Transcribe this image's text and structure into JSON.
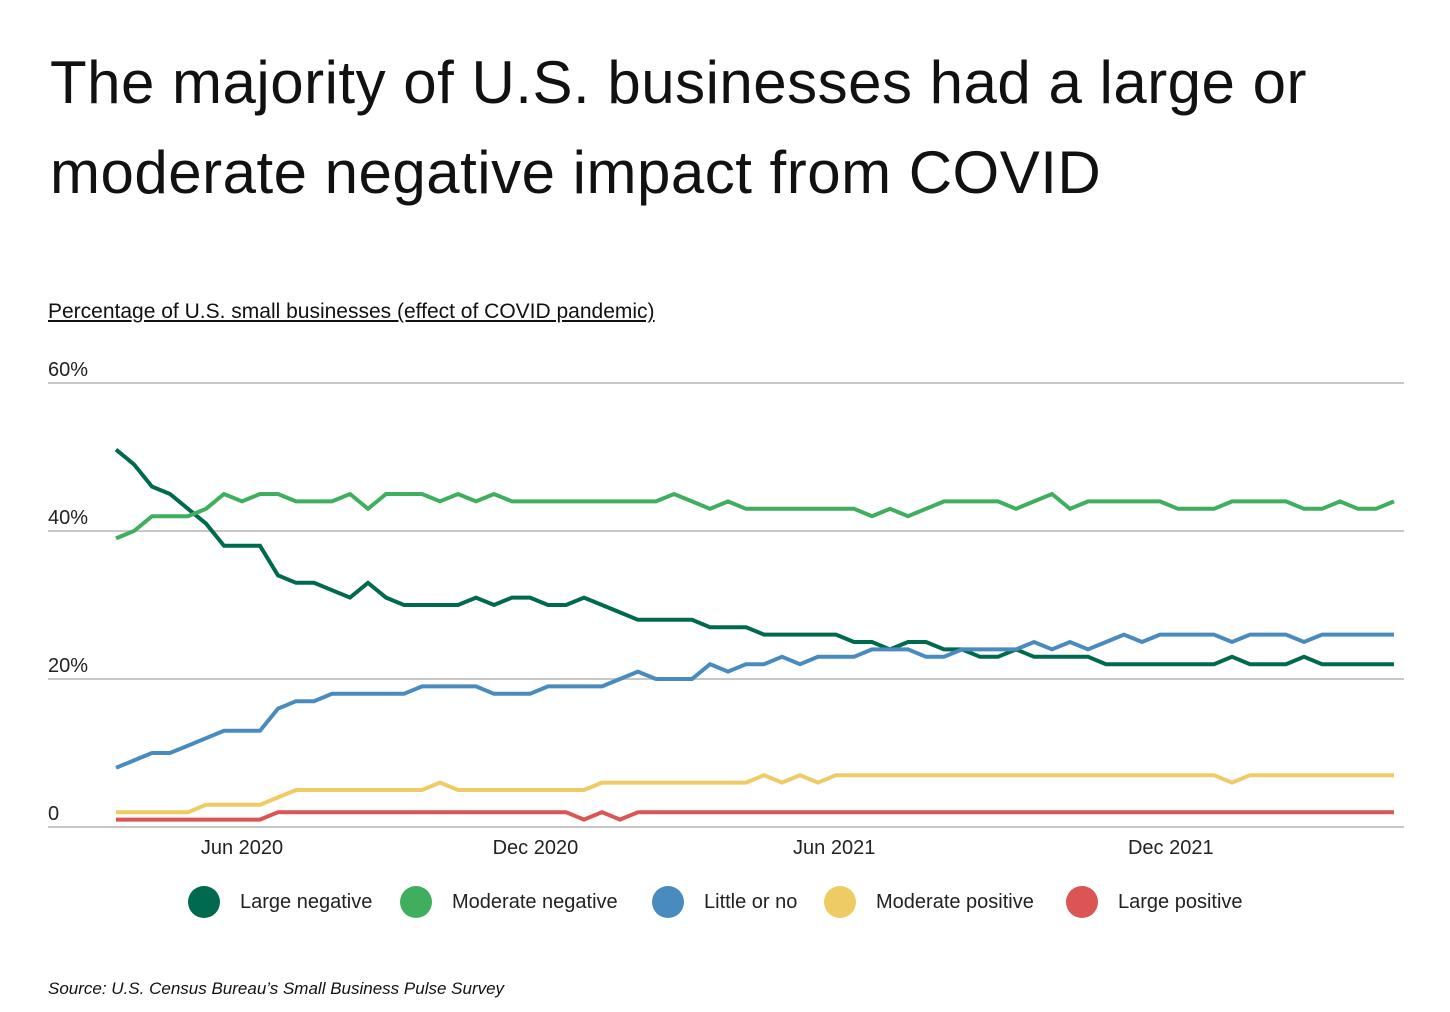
{
  "title": "The majority of U.S. businesses had a large or moderate negative impact from COVID",
  "subtitle": "Percentage of U.S. small businesses (effect of COVID pandemic)",
  "source": "Source:  U.S. Census Bureau’s Small Business Pulse Survey",
  "chart_data": {
    "type": "line",
    "title": "The majority of U.S. businesses had a large or moderate negative impact from COVID",
    "ylabel": "Percentage of U.S. small businesses (effect of COVID pandemic)",
    "ylim": [
      0,
      60
    ],
    "y_ticks": [
      {
        "value": 0,
        "label": "0"
      },
      {
        "value": 20,
        "label": "20%"
      },
      {
        "value": 40,
        "label": "40%"
      },
      {
        "value": 60,
        "label": "60%"
      }
    ],
    "x_ticks": [
      {
        "at": 7,
        "label": "Jun 2020"
      },
      {
        "at": 23.3,
        "label": "Dec 2020"
      },
      {
        "at": 39.9,
        "label": "Jun 2021"
      },
      {
        "at": 58.6,
        "label": "Dec 2021"
      }
    ],
    "grid": true,
    "legend": "bottom",
    "series": [
      {
        "name": "Large negative",
        "color": "#006a4e",
        "values": [
          51,
          49,
          46,
          45,
          43,
          41,
          38,
          38,
          38,
          34,
          33,
          33,
          32,
          31,
          33,
          31,
          30,
          30,
          30,
          30,
          31,
          30,
          31,
          31,
          30,
          30,
          31,
          30,
          29,
          28,
          28,
          28,
          28,
          27,
          27,
          27,
          26,
          26,
          26,
          26,
          26,
          25,
          25,
          24,
          25,
          25,
          24,
          24,
          23,
          23,
          24,
          23,
          23,
          23,
          23,
          22,
          22,
          22,
          22,
          22,
          22,
          22,
          23,
          22,
          22,
          22,
          23,
          22,
          22,
          22,
          22,
          22
        ]
      },
      {
        "name": "Moderate negative",
        "color": "#3fae5f",
        "values": [
          39,
          40,
          42,
          42,
          42,
          43,
          45,
          44,
          45,
          45,
          44,
          44,
          44,
          45,
          43,
          45,
          45,
          45,
          44,
          45,
          44,
          45,
          44,
          44,
          44,
          44,
          44,
          44,
          44,
          44,
          44,
          45,
          44,
          43,
          44,
          43,
          43,
          43,
          43,
          43,
          43,
          43,
          42,
          43,
          42,
          43,
          44,
          44,
          44,
          44,
          43,
          44,
          45,
          43,
          44,
          44,
          44,
          44,
          44,
          43,
          43,
          43,
          44,
          44,
          44,
          44,
          43,
          43,
          44,
          43,
          43,
          44
        ]
      },
      {
        "name": "Little or no",
        "color": "#4a8bbf",
        "values": [
          8,
          9,
          10,
          10,
          11,
          12,
          13,
          13,
          13,
          16,
          17,
          17,
          18,
          18,
          18,
          18,
          18,
          19,
          19,
          19,
          19,
          18,
          18,
          18,
          19,
          19,
          19,
          19,
          20,
          21,
          20,
          20,
          20,
          22,
          21,
          22,
          22,
          23,
          22,
          23,
          23,
          23,
          24,
          24,
          24,
          23,
          23,
          24,
          24,
          24,
          24,
          25,
          24,
          25,
          24,
          25,
          26,
          25,
          26,
          26,
          26,
          26,
          25,
          26,
          26,
          26,
          25,
          26,
          26,
          26,
          26,
          26
        ]
      },
      {
        "name": "Moderate positive",
        "color": "#eecb65",
        "values": [
          2,
          2,
          2,
          2,
          2,
          3,
          3,
          3,
          3,
          4,
          5,
          5,
          5,
          5,
          5,
          5,
          5,
          5,
          6,
          5,
          5,
          5,
          5,
          5,
          5,
          5,
          5,
          6,
          6,
          6,
          6,
          6,
          6,
          6,
          6,
          6,
          7,
          6,
          7,
          6,
          7,
          7,
          7,
          7,
          7,
          7,
          7,
          7,
          7,
          7,
          7,
          7,
          7,
          7,
          7,
          7,
          7,
          7,
          7,
          7,
          7,
          7,
          6,
          7,
          7,
          7,
          7,
          7,
          7,
          7,
          7,
          7
        ]
      },
      {
        "name": "Large positive",
        "color": "#dc5454",
        "values": [
          1,
          1,
          1,
          1,
          1,
          1,
          1,
          1,
          1,
          2,
          2,
          2,
          2,
          2,
          2,
          2,
          2,
          2,
          2,
          2,
          2,
          2,
          2,
          2,
          2,
          2,
          1,
          2,
          1,
          2,
          2,
          2,
          2,
          2,
          2,
          2,
          2,
          2,
          2,
          2,
          2,
          2,
          2,
          2,
          2,
          2,
          2,
          2,
          2,
          2,
          2,
          2,
          2,
          2,
          2,
          2,
          2,
          2,
          2,
          2,
          2,
          2,
          2,
          2,
          2,
          2,
          2,
          2,
          2,
          2,
          2,
          2
        ]
      }
    ]
  }
}
